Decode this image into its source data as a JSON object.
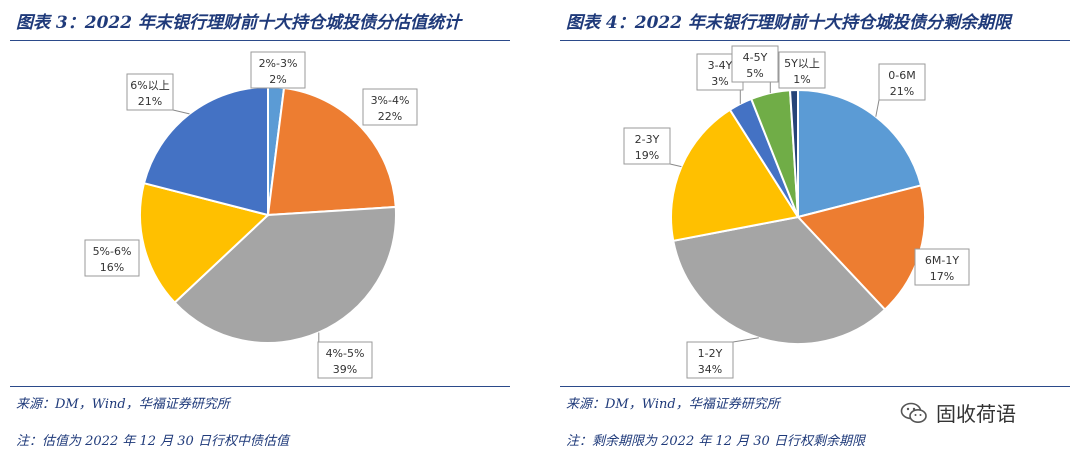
{
  "chart_data": [
    {
      "type": "pie",
      "title": "图表 3：2022 年末银行理财前十大持仓城投债分估值统计",
      "slices": [
        {
          "label": "2%-3%",
          "value": 2,
          "value_label": "2%",
          "color": "#5b9bd5"
        },
        {
          "label": "3%-4%",
          "value": 22,
          "value_label": "22%",
          "color": "#ed7d31"
        },
        {
          "label": "4%-5%",
          "value": 39,
          "value_label": "39%",
          "color": "#a5a5a5"
        },
        {
          "label": "5%-6%",
          "value": 16,
          "value_label": "16%",
          "color": "#ffc000"
        },
        {
          "label": "6%以上",
          "value": 21,
          "value_label": "21%",
          "color": "#4472c4"
        }
      ],
      "source": "来源：DM，Wind，华福证券研究所",
      "footnote": "注：估值为 2022 年 12 月 30 日行权中债估值"
    },
    {
      "type": "pie",
      "title": "图表 4：2022 年末银行理财前十大持仓城投债分剩余期限",
      "slices": [
        {
          "label": "0-6M",
          "value": 21,
          "value_label": "21%",
          "color": "#5b9bd5"
        },
        {
          "label": "6M-1Y",
          "value": 17,
          "value_label": "17%",
          "color": "#ed7d31"
        },
        {
          "label": "1-2Y",
          "value": 34,
          "value_label": "34%",
          "color": "#a5a5a5"
        },
        {
          "label": "2-3Y",
          "value": 19,
          "value_label": "19%",
          "color": "#ffc000"
        },
        {
          "label": "3-4Y",
          "value": 3,
          "value_label": "3%",
          "color": "#4472c4"
        },
        {
          "label": "4-5Y",
          "value": 5,
          "value_label": "5%",
          "color": "#70ad47"
        },
        {
          "label": "5Y以上",
          "value": 1,
          "value_label": "1%",
          "color": "#264478"
        }
      ],
      "source": "来源：DM，Wind，华福证券研究所",
      "footnote": "注：剩余期限为 2022 年 12 月 30 日行权剩余期限"
    }
  ],
  "watermark": {
    "text": "固收荷语",
    "icon": "wechat-icon"
  }
}
